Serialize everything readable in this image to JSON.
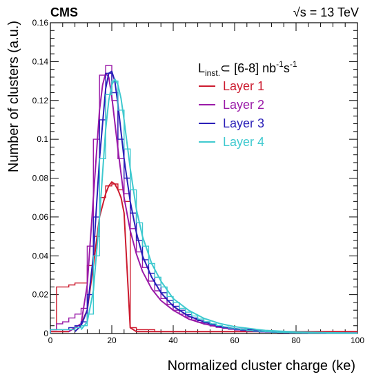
{
  "header": {
    "experiment": "CMS",
    "energy_sqrt": "√",
    "energy_rest": "s = 13 TeV"
  },
  "legend_header": {
    "symbol": "L",
    "subscript": "inst.",
    "relation": "⊂ [6-8] nb",
    "exp1": "-1",
    "mid": "s",
    "exp2": "-1"
  },
  "colors": {
    "layer1": "#cc1a2e",
    "layer2": "#9a1aa8",
    "layer3": "#2a1fb8",
    "layer4": "#3ec9cf",
    "frame": "#000000"
  },
  "chart_data": {
    "type": "line",
    "xlabel": "Normalized cluster charge (ke)",
    "ylabel": "Number of clusters (a.u.)",
    "xlim": [
      0,
      100
    ],
    "ylim": [
      0,
      0.16
    ],
    "x_ticks": [
      "0",
      "20",
      "40",
      "60",
      "80",
      "100"
    ],
    "y_ticks": [
      "0",
      "0.02",
      "0.04",
      "0.06",
      "0.08",
      "0.1",
      "0.12",
      "0.14",
      "0.16"
    ],
    "bin_width": 2,
    "bin_edges": [
      0,
      2,
      4,
      6,
      8,
      10,
      12,
      14,
      16,
      18,
      20,
      22,
      24,
      26,
      28,
      30,
      32,
      34,
      36,
      38,
      40,
      42,
      44,
      46,
      48,
      50,
      52,
      54,
      56,
      58,
      60,
      62,
      64,
      66,
      68,
      70,
      72,
      74,
      76,
      78,
      80,
      82,
      84,
      86,
      88,
      90,
      92,
      94,
      96,
      98,
      100
    ],
    "series": [
      {
        "name": "Layer 1",
        "color": "#cc1a2e",
        "histogram": [
          0.002,
          0.024,
          0.024,
          0.025,
          0.026,
          0.026,
          0.035,
          0.05,
          0.07,
          0.076,
          0.077,
          0.074,
          0.068,
          0.003,
          0.002,
          0.002,
          0.002,
          0.001,
          0.001,
          0.001,
          0.001,
          0.001,
          0.001,
          0.001,
          0.001,
          0.001,
          0.001,
          0.001,
          0.001,
          0.001,
          0.001,
          0.001,
          0.001,
          0.001,
          0.001,
          0.001,
          0.001,
          0.001,
          0.001,
          0.001,
          0.001,
          0.001,
          0.001,
          0.001,
          0.001,
          0.001,
          0.001,
          0.001,
          0.001,
          0.001
        ],
        "fit": {
          "x": [
            0,
            6,
            10,
            12,
            14,
            16,
            18,
            19,
            20,
            21,
            22,
            23,
            24,
            26,
            28,
            30,
            35,
            40,
            50,
            60,
            70,
            80,
            90,
            100
          ],
          "y": [
            0.001,
            0.001,
            0.005,
            0.012,
            0.035,
            0.06,
            0.072,
            0.076,
            0.078,
            0.077,
            0.074,
            0.07,
            0.062,
            0.003,
            0.001,
            0.001,
            0.001,
            0.001,
            0.001,
            0.001,
            0.001,
            0.001,
            0.001,
            0.001
          ]
        }
      },
      {
        "name": "Layer 2",
        "color": "#9a1aa8",
        "histogram": [
          0.002,
          0.005,
          0.006,
          0.008,
          0.01,
          0.013,
          0.045,
          0.1,
          0.133,
          0.138,
          0.12,
          0.09,
          0.072,
          0.054,
          0.042,
          0.034,
          0.027,
          0.022,
          0.018,
          0.015,
          0.012,
          0.01,
          0.0085,
          0.007,
          0.0058,
          0.0048,
          0.0039,
          0.0032,
          0.0027,
          0.0022,
          0.0018,
          0.0015,
          0.0012,
          0.001,
          0.0008,
          0.0007,
          0.0006,
          0.0005,
          0.0004,
          0.0003,
          0.0003,
          0.0002,
          0.0002,
          0.0002,
          0.0001,
          0.0001,
          0.0001,
          0.0001,
          0.0001,
          0.0001
        ],
        "fit": {
          "x": [
            6,
            10,
            12,
            14,
            16,
            17,
            18,
            19,
            20,
            22,
            24,
            26,
            28,
            30,
            33,
            36,
            40,
            45,
            50,
            55,
            60,
            70,
            80,
            90,
            100
          ],
          "y": [
            0.001,
            0.005,
            0.025,
            0.07,
            0.115,
            0.128,
            0.134,
            0.132,
            0.122,
            0.095,
            0.07,
            0.053,
            0.041,
            0.032,
            0.023,
            0.017,
            0.012,
            0.0075,
            0.005,
            0.0033,
            0.0022,
            0.0011,
            0.0005,
            0.0003,
            0.0002
          ]
        }
      },
      {
        "name": "Layer 3",
        "color": "#2a1fb8",
        "histogram": [
          0.002,
          0.002,
          0.002,
          0.003,
          0.004,
          0.006,
          0.02,
          0.06,
          0.11,
          0.134,
          0.124,
          0.1,
          0.08,
          0.062,
          0.048,
          0.038,
          0.031,
          0.025,
          0.021,
          0.017,
          0.014,
          0.012,
          0.0098,
          0.008,
          0.0066,
          0.0055,
          0.0045,
          0.0037,
          0.003,
          0.0025,
          0.002,
          0.0017,
          0.0014,
          0.0011,
          0.0009,
          0.0008,
          0.0006,
          0.0005,
          0.0004,
          0.0004,
          0.0003,
          0.0002,
          0.0002,
          0.0002,
          0.0001,
          0.0001,
          0.0001,
          0.0001,
          0.0001,
          0.0001
        ],
        "fit": {
          "x": [
            8,
            10,
            12,
            14,
            16,
            18,
            19,
            20,
            21,
            22,
            24,
            26,
            28,
            30,
            33,
            36,
            40,
            45,
            50,
            55,
            60,
            70,
            80,
            90,
            100
          ],
          "y": [
            0.001,
            0.004,
            0.012,
            0.04,
            0.09,
            0.126,
            0.134,
            0.135,
            0.13,
            0.118,
            0.09,
            0.068,
            0.052,
            0.04,
            0.029,
            0.021,
            0.014,
            0.009,
            0.006,
            0.0038,
            0.0025,
            0.0012,
            0.0006,
            0.0003,
            0.0002
          ]
        }
      },
      {
        "name": "Layer 4",
        "color": "#3ec9cf",
        "histogram": [
          0.002,
          0.002,
          0.002,
          0.002,
          0.003,
          0.004,
          0.01,
          0.04,
          0.09,
          0.123,
          0.13,
          0.115,
          0.095,
          0.074,
          0.057,
          0.045,
          0.036,
          0.029,
          0.024,
          0.019,
          0.016,
          0.013,
          0.011,
          0.009,
          0.0074,
          0.0061,
          0.005,
          0.0041,
          0.0034,
          0.0028,
          0.0023,
          0.0019,
          0.0015,
          0.0013,
          0.001,
          0.0009,
          0.0007,
          0.0006,
          0.0005,
          0.0004,
          0.0003,
          0.0003,
          0.0002,
          0.0002,
          0.0002,
          0.0001,
          0.0001,
          0.0001,
          0.0001,
          0.0001
        ],
        "fit": {
          "x": [
            10,
            12,
            14,
            16,
            18,
            19,
            20,
            21,
            22,
            23,
            24,
            26,
            28,
            30,
            33,
            36,
            40,
            45,
            50,
            55,
            60,
            70,
            80,
            90,
            100
          ],
          "y": [
            0.002,
            0.006,
            0.022,
            0.06,
            0.105,
            0.12,
            0.128,
            0.131,
            0.128,
            0.121,
            0.11,
            0.085,
            0.064,
            0.05,
            0.036,
            0.027,
            0.018,
            0.012,
            0.0078,
            0.0052,
            0.0035,
            0.0016,
            0.0008,
            0.0004,
            0.0002
          ]
        }
      }
    ]
  }
}
